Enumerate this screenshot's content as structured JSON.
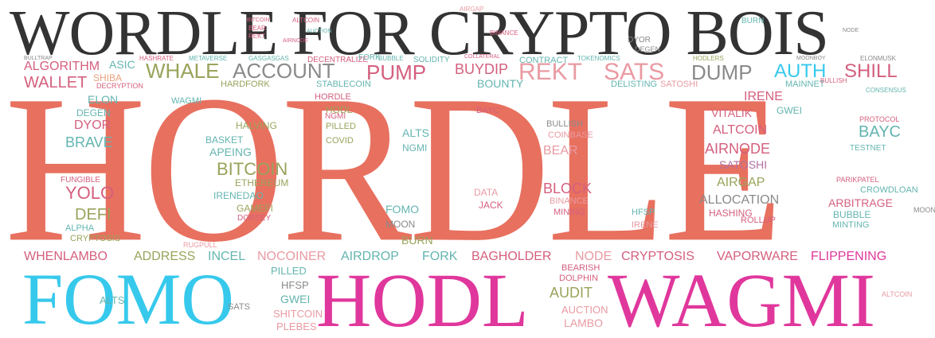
{
  "colors": {
    "dark": "#333333",
    "salmon": "#e8705f",
    "cyan": "#36c9ec",
    "magenta": "#e0379c",
    "olive": "#9aa35b",
    "pink": "#e99aa2",
    "teal": "#64b5b0",
    "peach": "#e9a17d",
    "rose": "#d45f7e",
    "grey": "#8a8a8a",
    "mauve": "#b06fa1"
  },
  "title": "WORDLE FOR CRYPTO BOIS",
  "hero": {
    "hordle": "HORDLE",
    "fomo": "FOMO",
    "hodl": "HODL",
    "wagmi": "WAGMI"
  },
  "words": [
    {
      "text": "WHALE",
      "color": "olive"
    },
    {
      "text": "ACCOUNT",
      "color": "grey"
    },
    {
      "text": "PUMP",
      "color": "rose"
    },
    {
      "text": "REKT",
      "color": "pink"
    },
    {
      "text": "SATS",
      "color": "pink"
    },
    {
      "text": "DUMP",
      "color": "grey"
    },
    {
      "text": "AUTH",
      "color": "cyan"
    },
    {
      "text": "SHILL",
      "color": "rose"
    },
    {
      "text": "WALLET",
      "color": "rose"
    },
    {
      "text": "ALGORITHM",
      "color": "rose"
    },
    {
      "text": "BUYDIP",
      "color": "rose"
    },
    {
      "text": "BOUNTY",
      "color": "teal"
    },
    {
      "text": "SHIBA",
      "color": "peach"
    },
    {
      "text": "ASIC",
      "color": "teal"
    },
    {
      "text": "BITCOIN",
      "color": "olive"
    },
    {
      "text": "ETHEREUM",
      "color": "olive"
    },
    {
      "text": "YOLO",
      "color": "rose"
    },
    {
      "text": "DEFI",
      "color": "olive"
    },
    {
      "text": "BRAVE",
      "color": "teal"
    },
    {
      "text": "DYOR",
      "color": "rose"
    },
    {
      "text": "ELON",
      "color": "teal"
    },
    {
      "text": "DEGEN",
      "color": "teal"
    },
    {
      "text": "AIRNODE",
      "color": "rose"
    },
    {
      "text": "AIRGAP",
      "color": "olive"
    },
    {
      "text": "ALLOCATION",
      "color": "grey"
    },
    {
      "text": "ARBITRAGE",
      "color": "rose"
    },
    {
      "text": "BUBBLE",
      "color": "teal"
    },
    {
      "text": "BAYC",
      "color": "teal"
    },
    {
      "text": "ALTCOIN",
      "color": "rose"
    },
    {
      "text": "SATOSHI",
      "color": "mauve"
    },
    {
      "text": "VITALIK",
      "color": "rose"
    },
    {
      "text": "IRENE",
      "color": "rose"
    },
    {
      "text": "GWEI",
      "color": "teal"
    },
    {
      "text": "BLOCK",
      "color": "rose"
    },
    {
      "text": "BEAR",
      "color": "pink"
    },
    {
      "text": "ALTS",
      "color": "teal"
    },
    {
      "text": "APEING",
      "color": "teal"
    },
    {
      "text": "COVID",
      "color": "olive"
    },
    {
      "text": "HODL",
      "color": "olive"
    },
    {
      "text": "PILLED",
      "color": "olive"
    },
    {
      "text": "NGMI",
      "color": "teal"
    },
    {
      "text": "HALVING",
      "color": "olive"
    },
    {
      "text": "BASKET",
      "color": "teal"
    },
    {
      "text": "GAMEFI",
      "color": "olive"
    },
    {
      "text": "IRENEDAO",
      "color": "teal"
    },
    {
      "text": "FOMO",
      "color": "teal"
    },
    {
      "text": "MOON",
      "color": "grey"
    },
    {
      "text": "BURN",
      "color": "olive"
    },
    {
      "text": "COINBASE",
      "color": "pink"
    },
    {
      "text": "BULLISH",
      "color": "grey"
    },
    {
      "text": "DATA",
      "color": "pink"
    },
    {
      "text": "JACK",
      "color": "rose"
    },
    {
      "text": "MINING",
      "color": "rose"
    },
    {
      "text": "BINANCE",
      "color": "pink"
    },
    {
      "text": "HFSP",
      "color": "teal"
    },
    {
      "text": "WHENLAMBO",
      "color": "rose"
    },
    {
      "text": "ADDRESS",
      "color": "olive"
    },
    {
      "text": "INCEL",
      "color": "teal"
    },
    {
      "text": "NOCOINER",
      "color": "pink"
    },
    {
      "text": "AIRDROP",
      "color": "teal"
    },
    {
      "text": "FORK",
      "color": "teal"
    },
    {
      "text": "BAGHOLDER",
      "color": "rose"
    },
    {
      "text": "NODE",
      "color": "pink"
    },
    {
      "text": "CRYPTOSIS",
      "color": "rose"
    },
    {
      "text": "VAPORWARE",
      "color": "rose"
    },
    {
      "text": "FLIPPENING",
      "color": "magenta"
    },
    {
      "text": "SHITCOIN",
      "color": "pink"
    },
    {
      "text": "PLEBES",
      "color": "pink"
    },
    {
      "text": "GWEI",
      "color": "teal"
    },
    {
      "text": "AUDIT",
      "color": "olive"
    },
    {
      "text": "AUCTION",
      "color": "pink"
    },
    {
      "text": "LAMBO",
      "color": "pink"
    },
    {
      "text": "HORDLE",
      "color": "rose"
    },
    {
      "text": "WAGMI",
      "color": "teal"
    },
    {
      "text": "HARDFORK",
      "color": "olive"
    },
    {
      "text": "STABLECOIN",
      "color": "teal"
    },
    {
      "text": "DELISTING",
      "color": "teal"
    },
    {
      "text": "SATOSHI",
      "color": "pink"
    },
    {
      "text": "MAINNET",
      "color": "teal"
    },
    {
      "text": "CRYPTOSIS",
      "color": "olive"
    },
    {
      "text": "CONTRACT",
      "color": "teal"
    },
    {
      "text": "DECENTRALIZE",
      "color": "rose"
    },
    {
      "text": "SOLIDITY",
      "color": "teal"
    },
    {
      "text": "MINTING",
      "color": "teal"
    },
    {
      "text": "ROLLUP",
      "color": "rose"
    },
    {
      "text": "TESTNET",
      "color": "teal"
    },
    {
      "text": "PARIKPATEL",
      "color": "rose"
    },
    {
      "text": "CROWDLOAN",
      "color": "teal"
    },
    {
      "text": "FUNGIBLE",
      "color": "rose"
    },
    {
      "text": "ALPHA",
      "color": "teal"
    },
    {
      "text": "DORSEY",
      "color": "rose"
    },
    {
      "text": "HASHING",
      "color": "rose"
    },
    {
      "text": "DOLPHIN",
      "color": "rose"
    },
    {
      "text": "BEARISH",
      "color": "rose"
    },
    {
      "text": "ALTS",
      "color": "teal"
    },
    {
      "text": "PILLED",
      "color": "teal"
    },
    {
      "text": "HFSP",
      "color": "grey"
    },
    {
      "text": "SATS",
      "color": "grey"
    },
    {
      "text": "ALTCOIN",
      "color": "pink"
    },
    {
      "text": "BULLTRAP",
      "color": "grey"
    },
    {
      "text": "HASHRATE",
      "color": "rose"
    },
    {
      "text": "METAVERSE",
      "color": "teal"
    },
    {
      "text": "GASGASGAS",
      "color": "teal"
    },
    {
      "text": "FORK",
      "color": "teal"
    },
    {
      "text": "BUBBLE",
      "color": "teal"
    },
    {
      "text": "COLLATERAL",
      "color": "rose"
    },
    {
      "text": "TOKENOMICS",
      "color": "teal"
    },
    {
      "text": "HODLERS",
      "color": "olive"
    },
    {
      "text": "ELONMUSK",
      "color": "grey"
    },
    {
      "text": "MOONBOY",
      "color": "grey"
    },
    {
      "text": "BITCOIN",
      "color": "rose"
    },
    {
      "text": "ALTCOIN",
      "color": "rose"
    },
    {
      "text": "AIRGAP",
      "color": "pink"
    },
    {
      "text": "BINANCE",
      "color": "rose"
    },
    {
      "text": "DYOR",
      "color": "grey"
    },
    {
      "text": "DEGEN",
      "color": "grey"
    },
    {
      "text": "BURN",
      "color": "teal"
    },
    {
      "text": "NODE",
      "color": "grey"
    },
    {
      "text": "REKT",
      "color": "rose"
    },
    {
      "text": "BEAR",
      "color": "rose"
    },
    {
      "text": "AIRNODE",
      "color": "rose"
    },
    {
      "text": "AUCTION",
      "color": "teal"
    },
    {
      "text": "DECRYPTION",
      "color": "rose"
    },
    {
      "text": "RUGPULL",
      "color": "pink"
    },
    {
      "text": "BULLISH",
      "color": "rose"
    },
    {
      "text": "CONSENSUS",
      "color": "teal"
    },
    {
      "text": "PROTOCOL",
      "color": "rose"
    },
    {
      "text": "IRENE",
      "color": "pink"
    },
    {
      "text": "BAYC",
      "color": "rose"
    },
    {
      "text": "NGMI",
      "color": "rose"
    },
    {
      "text": "MOON",
      "color": "grey"
    }
  ]
}
